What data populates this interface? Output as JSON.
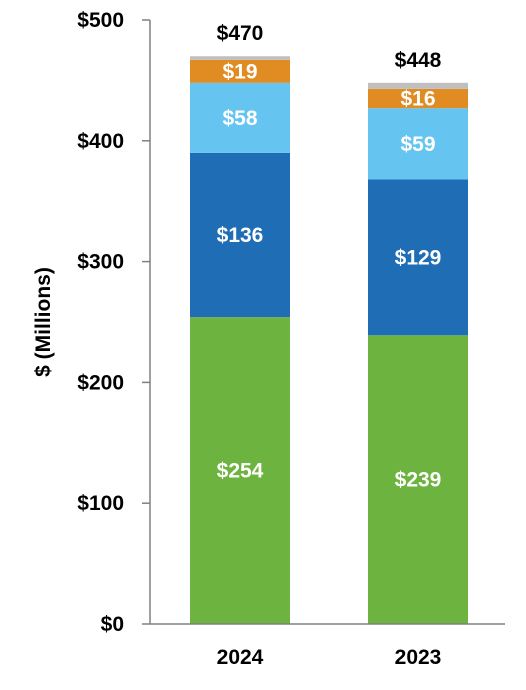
{
  "chart_data": {
    "type": "bar",
    "stacked": true,
    "title": "",
    "xlabel": "",
    "ylabel": "$ (Millions)",
    "ylim": [
      0,
      500
    ],
    "yticks": [
      0,
      100,
      200,
      300,
      400,
      500
    ],
    "ytick_labels": [
      "$0",
      "$100",
      "$200",
      "$300",
      "$400",
      "$500"
    ],
    "grid": false,
    "legend": "none",
    "categories": [
      "2024",
      "2023"
    ],
    "series": [
      {
        "values": [
          254,
          239
        ],
        "labels": [
          "$254",
          "$239"
        ],
        "color": "#6db33f"
      },
      {
        "values": [
          136,
          129
        ],
        "labels": [
          "$136",
          "$129"
        ],
        "color": "#1f6db5"
      },
      {
        "values": [
          58,
          59
        ],
        "labels": [
          "$58",
          "$59"
        ],
        "color": "#66c4f0"
      },
      {
        "values": [
          19,
          16
        ],
        "labels": [
          "$19",
          "$16"
        ],
        "color": "#e08c22"
      },
      {
        "values": [
          3,
          5
        ],
        "labels": [
          "",
          ""
        ],
        "color": "#bfbfbf"
      }
    ],
    "totals": [
      470,
      448
    ],
    "total_labels": [
      "$470",
      "$448"
    ]
  }
}
